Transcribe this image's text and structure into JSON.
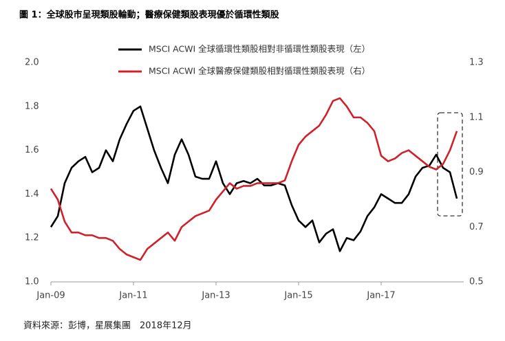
{
  "chart_data": {
    "type": "line",
    "title": "圖 1：全球股市呈現類股輪動；醫療保健類股表現優於循環性類股",
    "source": "資料來源：彭博，星展集團　2018年12月",
    "categories": [
      "Jan-09",
      null,
      null,
      null,
      null,
      null,
      null,
      null,
      null,
      null,
      null,
      null,
      "Jan-11",
      null,
      null,
      null,
      null,
      null,
      null,
      null,
      null,
      null,
      null,
      null,
      "Jan-13",
      null,
      null,
      null,
      null,
      null,
      null,
      null,
      null,
      null,
      null,
      null,
      "Jan-15",
      null,
      null,
      null,
      null,
      null,
      null,
      null,
      null,
      null,
      null,
      null,
      "Jan-17",
      null,
      null,
      null,
      null,
      null,
      null,
      null,
      null,
      null,
      null,
      null
    ],
    "ylim": [
      1.0,
      2.0
    ],
    "yticks": [
      {
        "value": 1.0,
        "label": "1.0"
      },
      1.2,
      1.4,
      1.6,
      1.8,
      {
        "value": 2.0,
        "label": "2.0"
      }
    ],
    "y2lim": [
      0.5,
      1.3
    ],
    "y2ticks": [
      0.5,
      0.7,
      0.9,
      1.1,
      1.3
    ],
    "grid": false,
    "series": [
      {
        "name": "MSCI ACWI 全球循環性類股相對非循環性類股表現（左）",
        "color": "#000000",
        "values": [
          1.25,
          1.3,
          1.45,
          1.52,
          1.55,
          1.57,
          1.5,
          1.52,
          1.6,
          1.55,
          1.65,
          1.72,
          1.78,
          1.8,
          1.7,
          1.6,
          1.52,
          1.45,
          1.58,
          1.65,
          1.58,
          1.48,
          1.47,
          1.47,
          1.55,
          1.45,
          1.4,
          1.45,
          1.46,
          1.45,
          1.47,
          1.44,
          1.44,
          1.45,
          1.44,
          1.35,
          1.28,
          1.25,
          1.28,
          1.18,
          1.22,
          1.24,
          1.14,
          1.2,
          1.19,
          1.23,
          1.3,
          1.34,
          1.4,
          1.38,
          1.36,
          1.36,
          1.4,
          1.48,
          1.52,
          1.53,
          1.58,
          1.52,
          1.5,
          1.38
        ]
      },
      {
        "name": "MSCI ACWI 全球醫療保健類股相對循環性類股表現（右）",
        "color": "#d0202a",
        "axis": "y2",
        "values": [
          0.84,
          0.8,
          0.72,
          0.68,
          0.68,
          0.67,
          0.67,
          0.66,
          0.66,
          0.65,
          0.62,
          0.6,
          0.59,
          0.58,
          0.62,
          0.64,
          0.66,
          0.68,
          0.65,
          0.7,
          0.72,
          0.74,
          0.75,
          0.76,
          0.8,
          0.83,
          0.86,
          0.84,
          0.85,
          0.85,
          0.86,
          0.86,
          0.86,
          0.86,
          0.87,
          0.94,
          1.0,
          1.03,
          1.05,
          1.07,
          1.11,
          1.16,
          1.17,
          1.14,
          1.1,
          1.1,
          1.08,
          1.05,
          0.96,
          0.94,
          0.95,
          0.97,
          0.98,
          0.96,
          0.94,
          0.92,
          0.91,
          0.93,
          0.98,
          1.05
        ]
      }
    ]
  }
}
